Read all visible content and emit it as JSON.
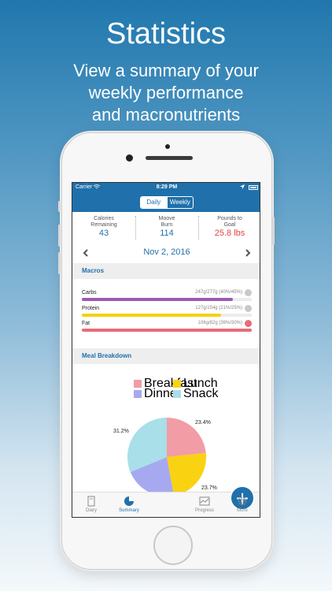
{
  "promo": {
    "title": "Statistics",
    "subtitle": "View a summary of your\nweekly performance\nand macronutrients"
  },
  "status": {
    "carrier": "Carrier",
    "time": "8:29 PM"
  },
  "segment": {
    "daily": "Daily",
    "weekly": "Weekly",
    "selected": "Daily"
  },
  "summary": [
    {
      "label": "Calories\nRemaining",
      "value": "43"
    },
    {
      "label": "Moove\nBurn",
      "value": "114"
    },
    {
      "label": "Pounds to\nGoal",
      "value": "25.8 lbs"
    }
  ],
  "date": "Nov 2, 2016",
  "macros": {
    "header": "Macros",
    "items": [
      {
        "label": "Carbs",
        "amount": "247g/277g (40%/45%)",
        "fraction": 0.89,
        "color": "#9b59b6"
      },
      {
        "label": "Protein",
        "amount": "127g/154g (21%/25%)",
        "fraction": 0.82,
        "color": "#f5d10d"
      },
      {
        "label": "Fat",
        "amount": "108g/82g (39%/30%)",
        "fraction": 1.0,
        "color": "#e96b78"
      }
    ]
  },
  "meal_breakdown": {
    "header": "Meal Breakdown",
    "legend": [
      "Breakfast",
      "Lunch",
      "Dinner",
      "Snack"
    ],
    "colors": {
      "breakfast": "#f29ca5",
      "lunch": "#f9d212",
      "dinner": "#a6a9f0",
      "snack": "#a8dfe8"
    },
    "labels": {
      "breakfast": "23.4%",
      "lunch": "23.7%",
      "snack": "31.2%"
    }
  },
  "chart_data": {
    "type": "pie",
    "categories": [
      "Breakfast",
      "Lunch",
      "Dinner",
      "Snack"
    ],
    "values": [
      23.4,
      23.7,
      21.7,
      31.2
    ]
  },
  "tabs": [
    {
      "label": "Diary",
      "icon": "diary-icon"
    },
    {
      "label": "Summary",
      "icon": "pie-chart-icon"
    },
    {
      "label": "",
      "icon": "plus-icon"
    },
    {
      "label": "Progress",
      "icon": "progress-chart-icon"
    },
    {
      "label": "More",
      "icon": "gear-icon"
    }
  ]
}
